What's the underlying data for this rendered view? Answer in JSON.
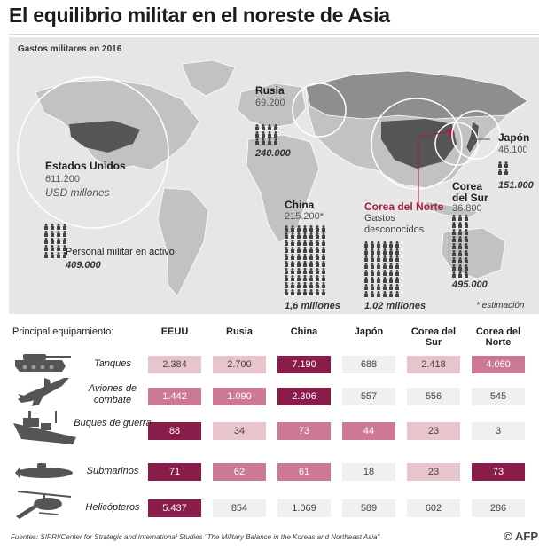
{
  "title": "El equilibrio militar en el noreste de Asia",
  "map": {
    "subtitle": "Gastos militares en 2016",
    "countries": {
      "usa": {
        "name": "Estados Unidos",
        "spending": "611.200",
        "unit": "USD millones",
        "personnel_label": "Personal militar en activo",
        "personnel": "409.000"
      },
      "russia": {
        "name": "Rusia",
        "spending": "69.200",
        "personnel": "240.000"
      },
      "china": {
        "name": "China",
        "spending": "215.200*",
        "personnel": "1,6 millones"
      },
      "north_korea": {
        "name": "Corea del Norte",
        "spending_note": "Gastos desconocidos",
        "personnel": "1,02 millones"
      },
      "south_korea": {
        "name": "Corea del Sur",
        "spending": "36.800",
        "personnel": "495.000"
      },
      "japan": {
        "name": "Japón",
        "spending": "46.100",
        "personnel": "151.000"
      }
    },
    "note": "* estimación"
  },
  "table": {
    "heading": "Principal equipamiento:",
    "columns": [
      "EEUU",
      "Rusia",
      "China",
      "Japón",
      "Corea del Sur",
      "Corea del Norte"
    ],
    "rows": [
      {
        "label": "Tanques",
        "icon": "tank-icon",
        "values": [
          "2.384",
          "2.700",
          "7.190",
          "688",
          "2.418",
          "4.060"
        ]
      },
      {
        "label": "Aviones de combate",
        "icon": "fighter-jet-icon",
        "values": [
          "1.442",
          "1.090",
          "2.306",
          "557",
          "556",
          "545"
        ]
      },
      {
        "label": "Buques de guerra",
        "icon": "warship-icon",
        "values": [
          "88",
          "34",
          "73",
          "44",
          "23",
          "3"
        ]
      },
      {
        "label": "Submarinos",
        "icon": "submarine-icon",
        "values": [
          "71",
          "62",
          "61",
          "18",
          "23",
          "73"
        ]
      },
      {
        "label": "Helicópteros",
        "icon": "helicopter-icon",
        "values": [
          "5.437",
          "854",
          "1.069",
          "589",
          "602",
          "286"
        ]
      }
    ]
  },
  "colors": {
    "dark": "#8a1c4a",
    "medium": "#cc7a94",
    "light": "#e8c4cd",
    "pale": "#f0f0f0",
    "accent": "#a3203e"
  },
  "footer": {
    "source": "Fuentes: SIPRI/Center for Strategic and International Studies \"The Military Balance in the Koreas and Northeast Asia\"",
    "logo": "© AFP"
  },
  "chart_data": {
    "type": "table",
    "title": "El equilibrio militar en el noreste de Asia",
    "spending_title": "Gastos militares en 2016",
    "spending_unit": "USD millones",
    "spending": {
      "categories": [
        "Estados Unidos",
        "Rusia",
        "China",
        "Japón",
        "Corea del Sur",
        "Corea del Norte"
      ],
      "values": [
        611200,
        69200,
        215200,
        46100,
        36800,
        null
      ]
    },
    "personnel_label": "Personal militar en activo",
    "personnel": {
      "categories": [
        "Estados Unidos",
        "Rusia",
        "China",
        "Japón",
        "Corea del Sur",
        "Corea del Norte"
      ],
      "values": [
        409000,
        240000,
        1600000,
        151000,
        495000,
        1020000
      ]
    },
    "equipment": {
      "categories": [
        "EEUU",
        "Rusia",
        "China",
        "Japón",
        "Corea del Sur",
        "Corea del Norte"
      ],
      "series": [
        {
          "name": "Tanques",
          "values": [
            2384,
            2700,
            7190,
            688,
            2418,
            4060
          ]
        },
        {
          "name": "Aviones de combate",
          "values": [
            1442,
            1090,
            2306,
            557,
            556,
            545
          ]
        },
        {
          "name": "Buques de guerra",
          "values": [
            88,
            34,
            73,
            44,
            23,
            3
          ]
        },
        {
          "name": "Submarinos",
          "values": [
            71,
            62,
            61,
            18,
            23,
            73
          ]
        },
        {
          "name": "Helicópteros",
          "values": [
            5437,
            854,
            1069,
            589,
            602,
            286
          ]
        }
      ]
    }
  }
}
